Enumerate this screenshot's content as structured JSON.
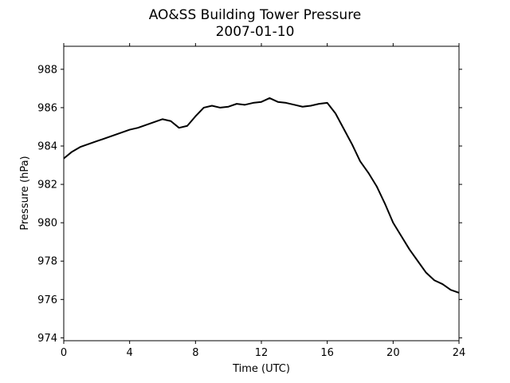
{
  "chart_data": {
    "type": "line",
    "title": "AO&SS Building Tower Pressure",
    "subtitle": "2007-01-10",
    "xlabel": "Time (UTC)",
    "ylabel": "Pressure (hPa)",
    "xlim": [
      0,
      24
    ],
    "ylim": [
      973.85,
      989.2
    ],
    "xticks": [
      0,
      4,
      8,
      12,
      16,
      20,
      24
    ],
    "yticks": [
      974,
      976,
      978,
      980,
      982,
      984,
      986,
      988
    ],
    "grid": false,
    "legend": "none",
    "line_color": "#000000",
    "series": [
      {
        "x": [
          0,
          0.5,
          1,
          1.5,
          2,
          2.5,
          3,
          3.5,
          4,
          4.5,
          5,
          5.5,
          6,
          6.5,
          7,
          7.5,
          8,
          8.5,
          9,
          9.5,
          10,
          10.5,
          11,
          11.5,
          12,
          12.5,
          13,
          13.5,
          14,
          14.5,
          15,
          15.5,
          16,
          16.5,
          17,
          17.5,
          18,
          18.5,
          19,
          19.5,
          20,
          20.5,
          21,
          21.5,
          22,
          22.5,
          23,
          23.5,
          24
        ],
        "y": [
          983.35,
          983.7,
          983.95,
          984.1,
          984.25,
          984.4,
          984.55,
          984.7,
          984.85,
          984.95,
          985.1,
          985.25,
          985.4,
          985.3,
          984.95,
          985.05,
          985.55,
          986.0,
          986.1,
          986.0,
          986.05,
          986.2,
          986.15,
          986.25,
          986.3,
          986.5,
          986.3,
          986.25,
          986.15,
          986.05,
          986.1,
          986.2,
          986.25,
          985.7,
          984.9,
          984.1,
          983.2,
          982.6,
          981.9,
          981.0,
          980.0,
          979.3,
          978.6,
          978.0,
          977.4,
          977.0,
          976.8,
          976.5,
          976.35
        ]
      }
    ]
  }
}
